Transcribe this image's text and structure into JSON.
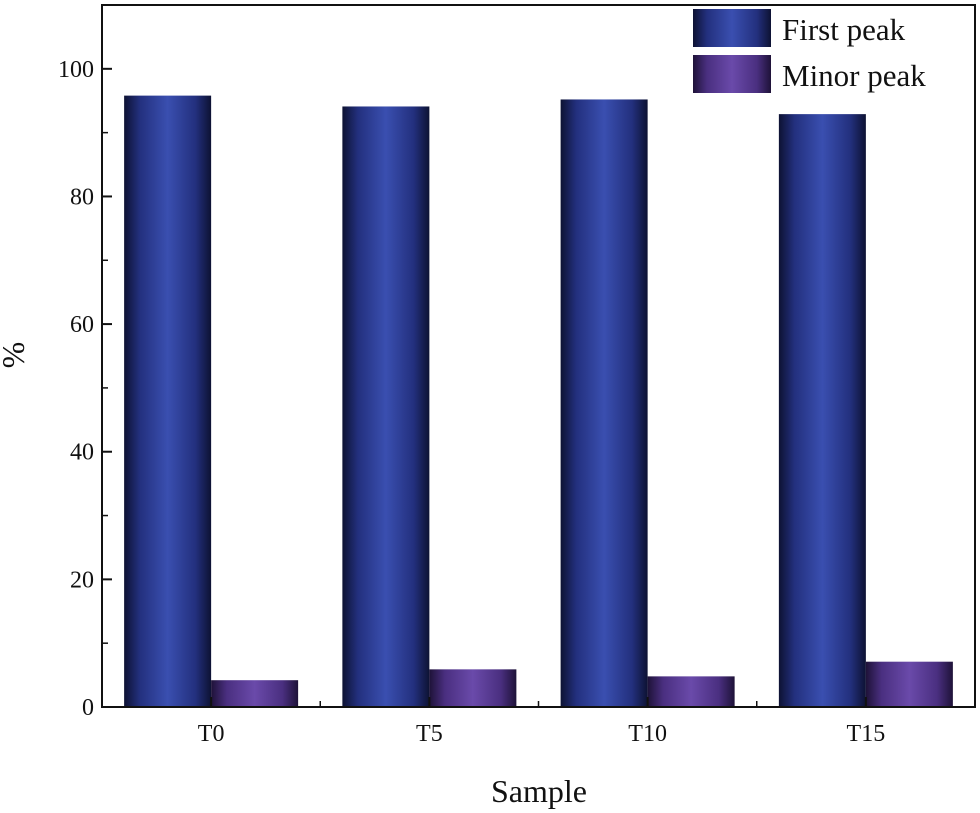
{
  "chart_data": {
    "type": "bar",
    "categories": [
      "T0",
      "T5",
      "T10",
      "T15"
    ],
    "series": [
      {
        "name": "First peak",
        "values": [
          95.8,
          94.1,
          95.2,
          92.9
        ],
        "color": "#2E3F9A"
      },
      {
        "name": "Minor peak",
        "values": [
          4.2,
          5.9,
          4.8,
          7.1
        ],
        "color": "#5A3A96"
      }
    ],
    "xlabel": "Sample",
    "ylabel": "%",
    "ylim": [
      0,
      110
    ],
    "yticks": [
      0,
      20,
      40,
      60,
      80,
      100
    ],
    "yticks_minor": [
      10,
      30,
      50,
      70,
      90
    ],
    "grid": false,
    "legend_position": "top-right"
  }
}
